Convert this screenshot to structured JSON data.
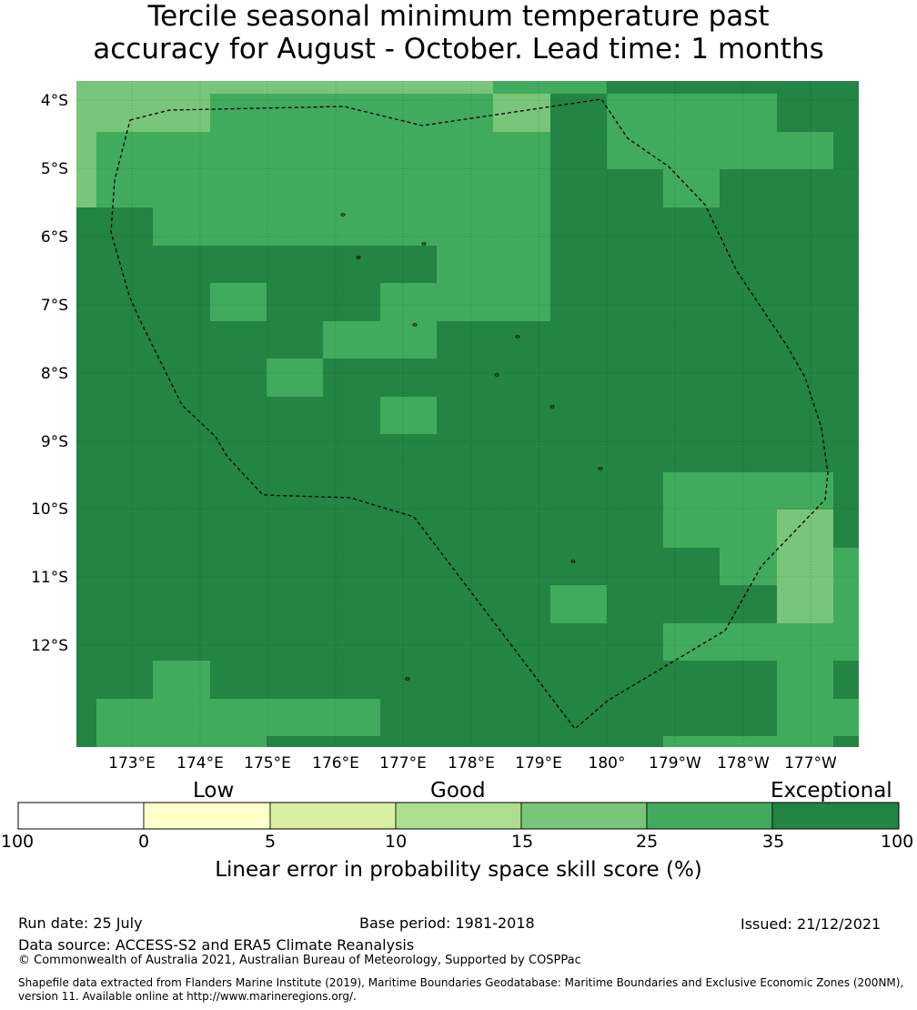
{
  "title": {
    "line1": "Tercile seasonal minimum temperature past",
    "line2": "accuracy for August - October. Lead time: 1 months"
  },
  "map": {
    "lat_labels": [
      "4°S",
      "5°S",
      "6°S",
      "7°S",
      "8°S",
      "9°S",
      "10°S",
      "11°S",
      "12°S"
    ],
    "lon_labels": [
      "173°E",
      "174°E",
      "175°E",
      "176°E",
      "177°E",
      "178°E",
      "179°E",
      "180°",
      "179°W",
      "178°W",
      "177°W"
    ],
    "boundary": "dashed maritime boundary (EEZ)"
  },
  "colorbar": {
    "categories": [
      "Low",
      "Good",
      "Exceptional"
    ],
    "ticks": [
      "-100",
      "0",
      "5",
      "10",
      "15",
      "25",
      "35",
      "100"
    ],
    "colors": [
      "#ffffff",
      "#ffffcc",
      "#d9f0a3",
      "#addd8e",
      "#78c679",
      "#41ab5d",
      "#238443"
    ],
    "label": "Linear error in probability space skill score (%)"
  },
  "footer": {
    "run_date": "Run date: 25 July",
    "base_period": "Base period: 1981-2018",
    "issued": "Issued: 21/12/2021",
    "data_source": "Data source: ACCESS-S2 and ERA5 Climate Reanalysis",
    "copyright": "© Commonwealth of Australia 2021, Australian Bureau of Meteorology, Supported by COSPPac",
    "shapefile_line1": "Shapefile data extracted from Flanders Marine Institute (2019), Maritime Boundaries Geodatabase: Maritime Boundaries and Exclusive Economic Zones (200NM),",
    "shapefile_line2": "version 11. Available online at http://www.marineregions.org/."
  }
}
